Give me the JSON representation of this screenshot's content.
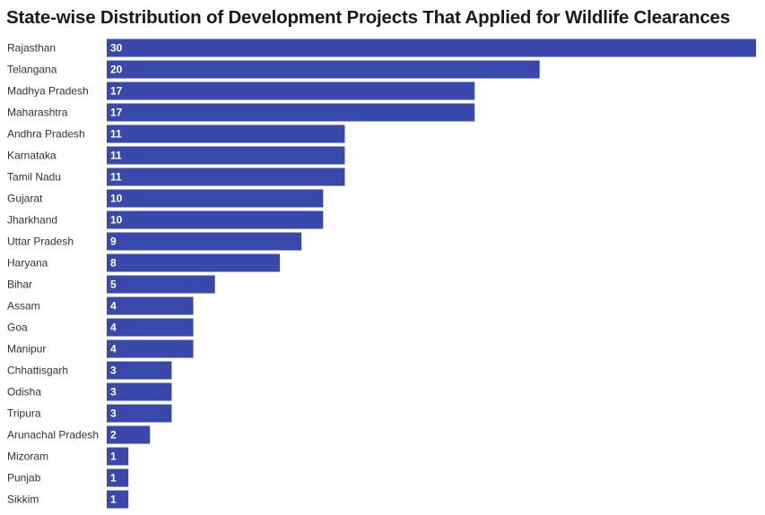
{
  "chart_data": {
    "type": "bar",
    "orientation": "horizontal",
    "title": "State-wise Distribution of Development Projects That Applied for Wildlife Clearances",
    "categories": [
      "Rajasthan",
      "Telangana",
      "Madhya Pradesh",
      "Maharashtra",
      "Andhra Pradesh",
      "Karnataka",
      "Tamil Nadu",
      "Gujarat",
      "Jharkhand",
      "Uttar Pradesh",
      "Haryana",
      "Bihar",
      "Assam",
      "Goa",
      "Manipur",
      "Chhattisgarh",
      "Odisha",
      "Tripura",
      "Arunachal Pradesh",
      "Mizoram",
      "Punjab",
      "Sikkim"
    ],
    "values": [
      30,
      20,
      17,
      17,
      11,
      11,
      11,
      10,
      10,
      9,
      8,
      5,
      4,
      4,
      4,
      3,
      3,
      3,
      2,
      1,
      1,
      1
    ],
    "xlim": [
      0,
      30
    ],
    "grid": false,
    "legend": "none",
    "data_labels": "inside-left",
    "bar_color": "#3949ab",
    "label_color": "#ffffff"
  }
}
